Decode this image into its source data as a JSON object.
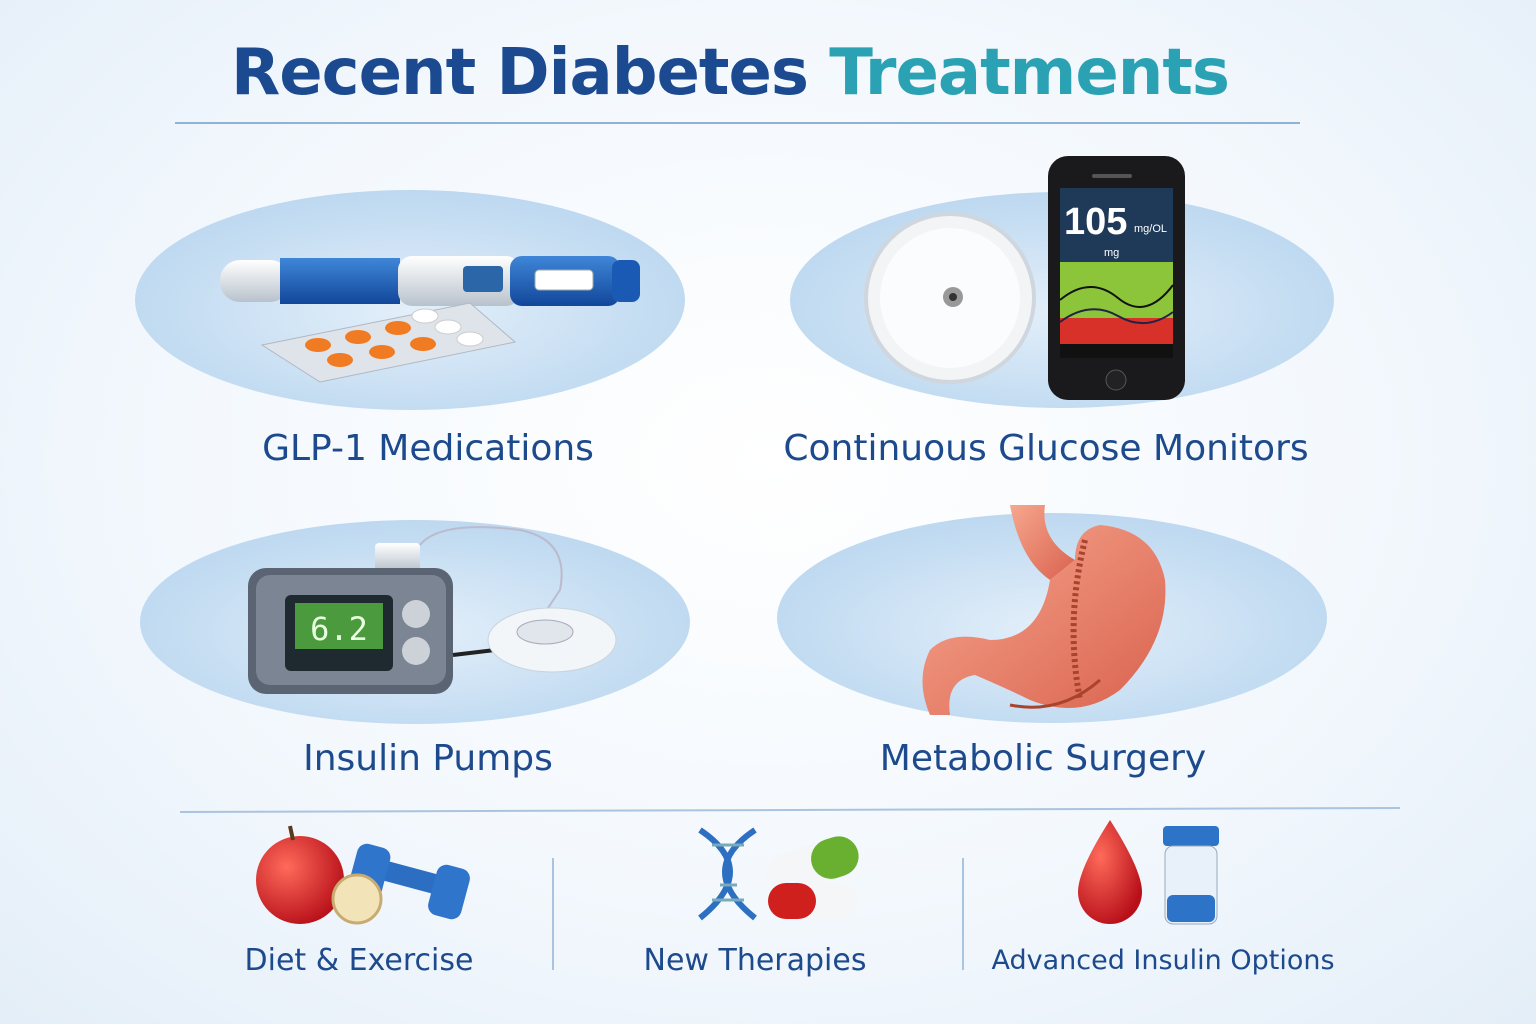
{
  "title": {
    "part1": "Recent Diabetes",
    "part2": "Treatments"
  },
  "colors": {
    "title_dark": "#1b4a90",
    "title_accent": "#2aa2b4",
    "label": "#1d4a8c"
  },
  "panels": [
    {
      "label": "GLP-1 Medications",
      "icon": "injection-pen-and-pills-icon"
    },
    {
      "label": "Continuous Glucose Monitors",
      "icon": "cgm-sensor-and-phone-icon",
      "screen": {
        "value": "105",
        "unit": "mg/OL",
        "sub": "mg"
      }
    },
    {
      "label": "Insulin Pumps",
      "icon": "insulin-pump-icon",
      "screen": {
        "value": "6.2"
      }
    },
    {
      "label": "Metabolic Surgery",
      "icon": "stomach-icon"
    }
  ],
  "bottom": [
    {
      "label": "Diet & Exercise",
      "icon": "apple-dumbbell-icon"
    },
    {
      "label": "New Therapies",
      "icon": "dna-capsules-icon"
    },
    {
      "label": "Advanced Insulin Options",
      "icon": "blood-drop-vial-icon"
    }
  ]
}
